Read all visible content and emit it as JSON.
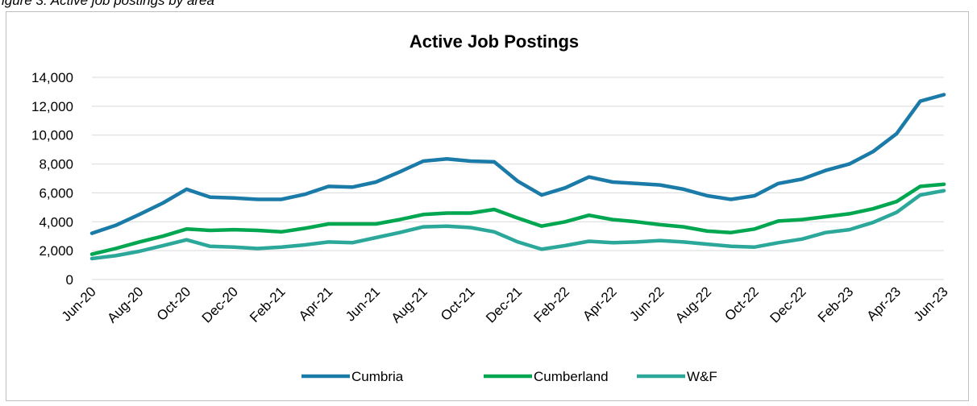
{
  "caption": "igure 3: Active job postings by area",
  "chart_data": {
    "type": "line",
    "title": "Active Job Postings",
    "xlabel": "",
    "ylabel": "",
    "ylim": [
      0,
      14000
    ],
    "yticks": [
      "0",
      "2,000",
      "4,000",
      "6,000",
      "8,000",
      "10,000",
      "12,000",
      "14,000"
    ],
    "grid": true,
    "legend_position": "bottom",
    "x": [
      "Jun-20",
      "Jul-20",
      "Aug-20",
      "Sep-20",
      "Oct-20",
      "Nov-20",
      "Dec-20",
      "Jan-21",
      "Feb-21",
      "Mar-21",
      "Apr-21",
      "May-21",
      "Jun-21",
      "Jul-21",
      "Aug-21",
      "Sep-21",
      "Oct-21",
      "Nov-21",
      "Dec-21",
      "Jan-22",
      "Feb-22",
      "Mar-22",
      "Apr-22",
      "May-22",
      "Jun-22",
      "Jul-22",
      "Aug-22",
      "Sep-22",
      "Oct-22",
      "Nov-22",
      "Dec-22",
      "Jan-23",
      "Feb-23",
      "Mar-23",
      "Apr-23",
      "May-23",
      "Jun-23"
    ],
    "xtick_labels": [
      "Jun-20",
      "Aug-20",
      "Oct-20",
      "Dec-20",
      "Feb-21",
      "Apr-21",
      "Jun-21",
      "Aug-21",
      "Oct-21",
      "Dec-21",
      "Feb-22",
      "Apr-22",
      "Jun-22",
      "Aug-22",
      "Oct-22",
      "Dec-22",
      "Feb-23",
      "Apr-23",
      "Jun-23"
    ],
    "series": [
      {
        "name": "Cumbria",
        "color": "#1a7aa8",
        "values": [
          3200,
          3750,
          4500,
          5300,
          6250,
          5700,
          5650,
          5550,
          5550,
          5900,
          6450,
          6400,
          6750,
          7450,
          8200,
          8350,
          8200,
          8150,
          6800,
          5850,
          6350,
          7100,
          6750,
          6650,
          6550,
          6250,
          5800,
          5550,
          5800,
          6650,
          6950,
          7550,
          8000,
          8850,
          10100,
          12350,
          12800
        ]
      },
      {
        "name": "Cumberland",
        "color": "#00a650",
        "values": [
          1750,
          2150,
          2600,
          3000,
          3500,
          3400,
          3450,
          3400,
          3300,
          3550,
          3850,
          3850,
          3850,
          4150,
          4500,
          4600,
          4600,
          4850,
          4250,
          3700,
          4000,
          4450,
          4150,
          4000,
          3800,
          3650,
          3350,
          3250,
          3500,
          4050,
          4150,
          4350,
          4550,
          4900,
          5400,
          6450,
          6600
        ]
      },
      {
        "name": "W&F",
        "color": "#2ba89a",
        "values": [
          1450,
          1650,
          1950,
          2350,
          2750,
          2300,
          2250,
          2150,
          2250,
          2400,
          2600,
          2550,
          2900,
          3250,
          3650,
          3700,
          3600,
          3300,
          2600,
          2100,
          2350,
          2650,
          2550,
          2600,
          2700,
          2600,
          2450,
          2300,
          2250,
          2550,
          2800,
          3250,
          3450,
          3950,
          4650,
          5850,
          6150
        ]
      }
    ]
  }
}
